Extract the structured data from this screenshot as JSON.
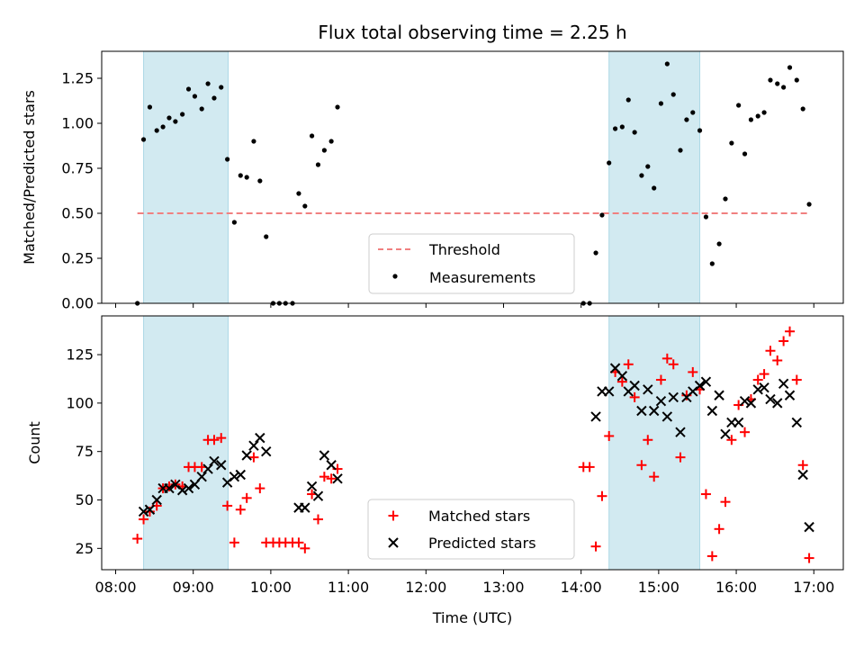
{
  "chart_data": {
    "type": "scatter",
    "title": "Flux total observing time = 2.25 h",
    "xlabel": "Time (UTC)",
    "x_unit": "hours UTC",
    "xlim": [
      7.82,
      17.38
    ],
    "xticks": [
      {
        "v": 8,
        "label": "08:00"
      },
      {
        "v": 9,
        "label": "09:00"
      },
      {
        "v": 10,
        "label": "10:00"
      },
      {
        "v": 11,
        "label": "11:00"
      },
      {
        "v": 12,
        "label": "12:00"
      },
      {
        "v": 13,
        "label": "13:00"
      },
      {
        "v": 14,
        "label": "14:00"
      },
      {
        "v": 15,
        "label": "15:00"
      },
      {
        "v": 16,
        "label": "16:00"
      },
      {
        "v": 17,
        "label": "17:00"
      }
    ],
    "shaded_intervals": [
      [
        8.36,
        9.45
      ],
      [
        14.36,
        15.53
      ]
    ],
    "shade_color": "#add8e6",
    "top": {
      "ylabel": "Matched/Predicted stars",
      "ylim": [
        0,
        1.4
      ],
      "yticks": [
        "0.00",
        "0.25",
        "0.50",
        "0.75",
        "1.00",
        "1.25"
      ],
      "threshold": {
        "name": "Threshold",
        "y": 0.5,
        "x_range": [
          8.28,
          16.92
        ],
        "color": "#f08080"
      },
      "measurements": {
        "name": "Measurements",
        "color": "#000000",
        "points": [
          [
            8.28,
            0.0
          ],
          [
            8.36,
            0.91
          ],
          [
            8.44,
            1.09
          ],
          [
            8.53,
            0.96
          ],
          [
            8.61,
            0.98
          ],
          [
            8.69,
            1.03
          ],
          [
            8.77,
            1.01
          ],
          [
            8.86,
            1.05
          ],
          [
            8.94,
            1.19
          ],
          [
            9.02,
            1.15
          ],
          [
            9.11,
            1.08
          ],
          [
            9.19,
            1.22
          ],
          [
            9.27,
            1.14
          ],
          [
            9.36,
            1.2
          ],
          [
            9.44,
            0.8
          ],
          [
            9.53,
            0.45
          ],
          [
            9.61,
            0.71
          ],
          [
            9.69,
            0.7
          ],
          [
            9.78,
            0.9
          ],
          [
            9.86,
            0.68
          ],
          [
            9.94,
            0.37
          ],
          [
            10.03,
            0.0
          ],
          [
            10.11,
            0.0
          ],
          [
            10.19,
            0.0
          ],
          [
            10.28,
            0.0
          ],
          [
            10.36,
            0.61
          ],
          [
            10.44,
            0.54
          ],
          [
            10.53,
            0.93
          ],
          [
            10.61,
            0.77
          ],
          [
            10.69,
            0.85
          ],
          [
            10.78,
            0.9
          ],
          [
            10.86,
            1.09
          ],
          [
            14.03,
            0.0
          ],
          [
            14.11,
            0.0
          ],
          [
            14.19,
            0.28
          ],
          [
            14.27,
            0.49
          ],
          [
            14.36,
            0.78
          ],
          [
            14.44,
            0.97
          ],
          [
            14.53,
            0.98
          ],
          [
            14.61,
            1.13
          ],
          [
            14.69,
            0.95
          ],
          [
            14.78,
            0.71
          ],
          [
            14.86,
            0.76
          ],
          [
            14.94,
            0.64
          ],
          [
            15.03,
            1.11
          ],
          [
            15.11,
            1.33
          ],
          [
            15.19,
            1.16
          ],
          [
            15.28,
            0.85
          ],
          [
            15.36,
            1.02
          ],
          [
            15.44,
            1.06
          ],
          [
            15.53,
            0.96
          ],
          [
            15.61,
            0.48
          ],
          [
            15.69,
            0.22
          ],
          [
            15.78,
            0.33
          ],
          [
            15.86,
            0.58
          ],
          [
            15.94,
            0.89
          ],
          [
            16.03,
            1.1
          ],
          [
            16.11,
            0.83
          ],
          [
            16.19,
            1.02
          ],
          [
            16.28,
            1.04
          ],
          [
            16.36,
            1.06
          ],
          [
            16.44,
            1.24
          ],
          [
            16.53,
            1.22
          ],
          [
            16.61,
            1.2
          ],
          [
            16.69,
            1.31
          ],
          [
            16.78,
            1.24
          ],
          [
            16.86,
            1.08
          ],
          [
            16.94,
            0.55
          ]
        ]
      },
      "legend": {
        "location": "lower-center"
      }
    },
    "bottom": {
      "ylabel": "Count",
      "ylim": [
        14,
        145
      ],
      "yticks": [
        25,
        50,
        75,
        100,
        125
      ],
      "series": [
        {
          "name": "Matched stars",
          "marker": "plus",
          "color": "#ff0000",
          "points": [
            [
              8.28,
              30
            ],
            [
              8.36,
              40
            ],
            [
              8.44,
              44
            ],
            [
              8.53,
              47
            ],
            [
              8.61,
              56
            ],
            [
              8.69,
              57
            ],
            [
              8.77,
              58
            ],
            [
              8.86,
              57
            ],
            [
              8.94,
              67
            ],
            [
              9.02,
              67
            ],
            [
              9.11,
              67
            ],
            [
              9.19,
              81
            ],
            [
              9.27,
              81
            ],
            [
              9.36,
              82
            ],
            [
              9.44,
              47
            ],
            [
              9.53,
              28
            ],
            [
              9.61,
              45
            ],
            [
              9.69,
              51
            ],
            [
              9.78,
              72
            ],
            [
              9.86,
              56
            ],
            [
              9.94,
              28
            ],
            [
              10.03,
              28
            ],
            [
              10.11,
              28
            ],
            [
              10.19,
              28
            ],
            [
              10.28,
              28
            ],
            [
              10.36,
              28
            ],
            [
              10.44,
              25
            ],
            [
              10.53,
              53
            ],
            [
              10.61,
              40
            ],
            [
              10.69,
              62
            ],
            [
              10.78,
              61
            ],
            [
              10.86,
              66
            ],
            [
              14.03,
              67
            ],
            [
              14.11,
              67
            ],
            [
              14.19,
              26
            ],
            [
              14.27,
              52
            ],
            [
              14.36,
              83
            ],
            [
              14.44,
              116
            ],
            [
              14.53,
              111
            ],
            [
              14.61,
              120
            ],
            [
              14.69,
              103
            ],
            [
              14.78,
              68
            ],
            [
              14.86,
              81
            ],
            [
              14.94,
              62
            ],
            [
              15.03,
              112
            ],
            [
              15.11,
              123
            ],
            [
              15.19,
              120
            ],
            [
              15.28,
              72
            ],
            [
              15.36,
              104
            ],
            [
              15.44,
              116
            ],
            [
              15.53,
              107
            ],
            [
              15.61,
              53
            ],
            [
              15.69,
              21
            ],
            [
              15.78,
              35
            ],
            [
              15.86,
              49
            ],
            [
              15.94,
              81
            ],
            [
              16.03,
              99
            ],
            [
              16.11,
              85
            ],
            [
              16.19,
              102
            ],
            [
              16.28,
              112
            ],
            [
              16.36,
              115
            ],
            [
              16.44,
              127
            ],
            [
              16.53,
              122
            ],
            [
              16.61,
              132
            ],
            [
              16.69,
              137
            ],
            [
              16.78,
              112
            ],
            [
              16.86,
              68
            ],
            [
              16.94,
              20
            ]
          ]
        },
        {
          "name": "Predicted stars",
          "marker": "x",
          "color": "#000000",
          "points": [
            [
              8.36,
              44
            ],
            [
              8.44,
              45
            ],
            [
              8.53,
              50
            ],
            [
              8.61,
              56
            ],
            [
              8.69,
              56
            ],
            [
              8.77,
              58
            ],
            [
              8.86,
              55
            ],
            [
              8.94,
              56
            ],
            [
              9.02,
              58
            ],
            [
              9.11,
              62
            ],
            [
              9.19,
              66
            ],
            [
              9.27,
              70
            ],
            [
              9.36,
              68
            ],
            [
              9.44,
              59
            ],
            [
              9.53,
              62
            ],
            [
              9.61,
              63
            ],
            [
              9.69,
              73
            ],
            [
              9.78,
              78
            ],
            [
              9.86,
              82
            ],
            [
              9.94,
              75
            ],
            [
              10.36,
              46
            ],
            [
              10.44,
              46
            ],
            [
              10.53,
              57
            ],
            [
              10.61,
              52
            ],
            [
              10.69,
              73
            ],
            [
              10.78,
              68
            ],
            [
              10.86,
              61
            ],
            [
              14.19,
              93
            ],
            [
              14.27,
              106
            ],
            [
              14.36,
              106
            ],
            [
              14.44,
              118
            ],
            [
              14.53,
              114
            ],
            [
              14.61,
              106
            ],
            [
              14.69,
              109
            ],
            [
              14.78,
              96
            ],
            [
              14.86,
              107
            ],
            [
              14.94,
              96
            ],
            [
              15.03,
              101
            ],
            [
              15.11,
              93
            ],
            [
              15.19,
              103
            ],
            [
              15.28,
              85
            ],
            [
              15.36,
              103
            ],
            [
              15.44,
              106
            ],
            [
              15.53,
              109
            ],
            [
              15.61,
              111
            ],
            [
              15.69,
              96
            ],
            [
              15.78,
              104
            ],
            [
              15.86,
              84
            ],
            [
              15.94,
              90
            ],
            [
              16.03,
              90
            ],
            [
              16.11,
              101
            ],
            [
              16.19,
              100
            ],
            [
              16.28,
              107
            ],
            [
              16.36,
              108
            ],
            [
              16.44,
              102
            ],
            [
              16.53,
              100
            ],
            [
              16.61,
              110
            ],
            [
              16.69,
              104
            ],
            [
              16.78,
              90
            ],
            [
              16.86,
              63
            ],
            [
              16.94,
              36
            ]
          ]
        }
      ],
      "legend": {
        "location": "lower-center"
      }
    }
  }
}
